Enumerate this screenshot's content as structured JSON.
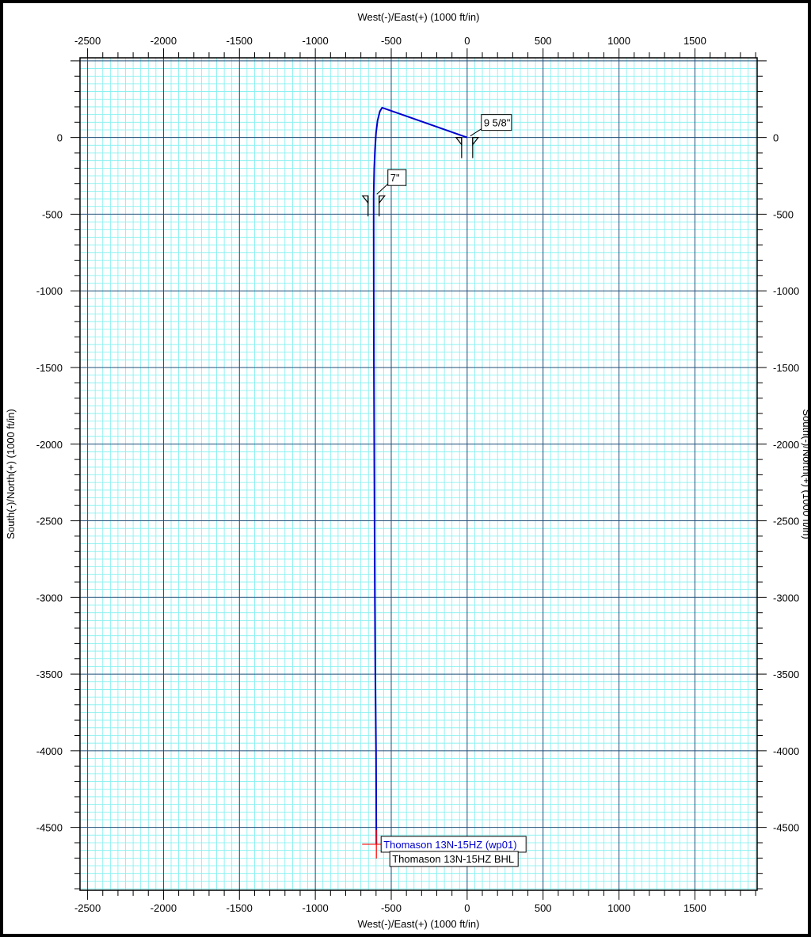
{
  "chart_data": {
    "type": "line",
    "x_axis": {
      "label_top": "West(-)/East(+) (1000 ft/in)",
      "label_bottom": "West(-)/East(+) (1000 ft/in)",
      "range": [
        -2550,
        1910
      ],
      "ticks": [
        "-2500",
        "-2000",
        "-1500",
        "-1000",
        "-500",
        "0",
        "500",
        "1000",
        "1500"
      ]
    },
    "y_axis": {
      "label_left": "South(-)/North(+) (1000 ft/in)",
      "label_right": "South(-)/North(+) (1000 ft/in)",
      "range": [
        -4910,
        520
      ],
      "ticks": [
        "0",
        "-500",
        "-1000",
        "-1500",
        "-2000",
        "-2500",
        "-3000",
        "-3500",
        "-4000",
        "-4500"
      ]
    },
    "grid": true,
    "grid_colors": {
      "major": "#1f4e79",
      "minor": "#7fefef"
    },
    "series": [
      {
        "color": "#0000cc",
        "x": [
          0,
          -560,
          -575,
          -590,
          -600,
          -607,
          -612,
          -614,
          -616,
          -616,
          -615,
          -614,
          -612,
          -610,
          -608,
          -605,
          -600,
          -598
        ],
        "y": [
          0,
          195,
          170,
          110,
          30,
          -80,
          -200,
          -300,
          -380,
          -600,
          -1000,
          -1500,
          -2000,
          -2500,
          -3000,
          -3500,
          -4000,
          -4610
        ]
      }
    ],
    "annotations": [
      {
        "text": "9 5/8\"",
        "x": 0,
        "y": 0,
        "color": "#000000"
      },
      {
        "text": "7\"",
        "x": -616,
        "y": -380,
        "color": "#000000"
      },
      {
        "text": "Thomason 13N-15HZ (wp01)",
        "x": -598,
        "y": -4610,
        "color": "#0000cc"
      },
      {
        "text": "Thomason 13N-15HZ BHL",
        "x": -598,
        "y": -4610,
        "color": "#000000"
      }
    ],
    "markers": [
      {
        "kind": "casing-shoe",
        "x": 0,
        "y": 0
      },
      {
        "kind": "casing-shoe",
        "x": -616,
        "y": -380
      },
      {
        "kind": "target-cross",
        "x": -598,
        "y": -4610,
        "color": "#ff0000"
      }
    ]
  }
}
